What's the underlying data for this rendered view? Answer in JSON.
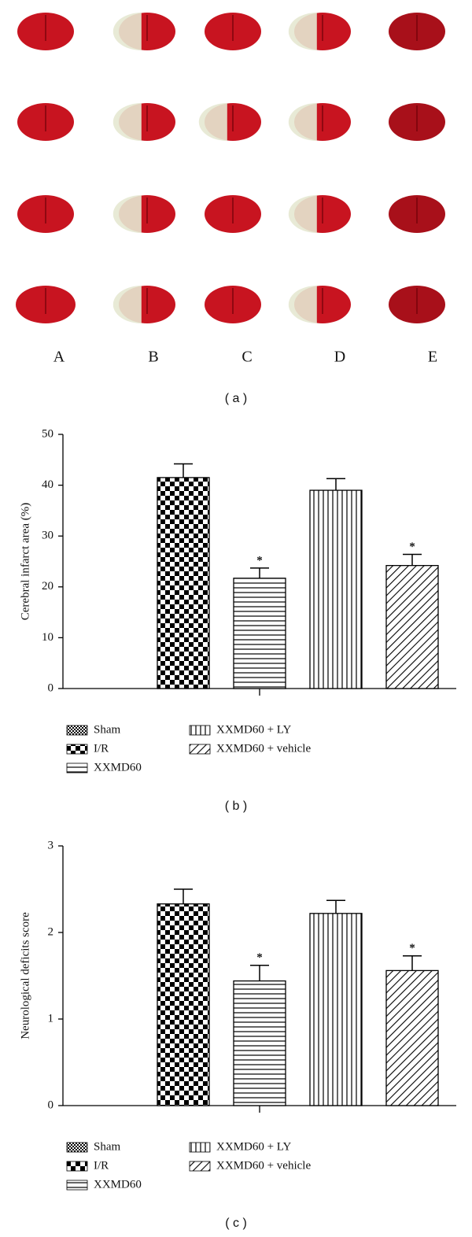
{
  "panel_a": {
    "column_labels": [
      "A",
      "B",
      "C",
      "D",
      "E"
    ],
    "caption": "( a )"
  },
  "chart_data": [
    {
      "type": "bar",
      "y_label": "Cerebral infarct area (%)",
      "categories": [
        "Sham",
        "I/R",
        "XXMD60",
        "XXMD60 + LY",
        "XXMD60 + vehicle"
      ],
      "values": [
        0,
        41.5,
        21.7,
        39,
        24.2
      ],
      "errors": [
        0,
        2.7,
        2.0,
        2.3,
        2.2
      ],
      "significance": [
        null,
        null,
        "*",
        null,
        "*"
      ],
      "ylim": [
        0,
        50
      ],
      "yticks": [
        0,
        10,
        20,
        30,
        40,
        50
      ],
      "color": "#000000",
      "caption": "( b )"
    },
    {
      "type": "bar",
      "y_label": "Neurological deficits score",
      "categories": [
        "Sham",
        "I/R",
        "XXMD60",
        "XXMD60 + LY",
        "XXMD60 + vehicle"
      ],
      "values": [
        0,
        2.33,
        1.44,
        2.22,
        1.56
      ],
      "errors": [
        0,
        0.17,
        0.18,
        0.15,
        0.17
      ],
      "significance": [
        null,
        null,
        "*",
        null,
        "*"
      ],
      "ylim": [
        0,
        3
      ],
      "yticks": [
        0,
        1,
        2,
        3
      ],
      "color": "#000000",
      "caption": "( c )"
    }
  ]
}
